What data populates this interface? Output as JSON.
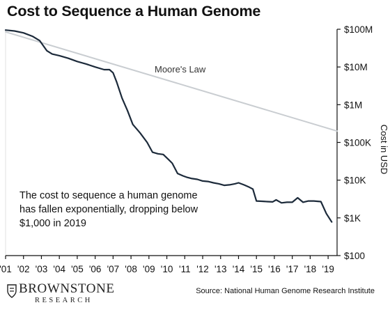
{
  "title": "Cost to Sequence a Human Genome",
  "source": "Source: National Human Genome Research Institute",
  "logo": {
    "name": "BROWNSTONE",
    "sub": "RESEARCH",
    "icon": "shield-crest-icon"
  },
  "annotation": [
    "The cost to sequence a human genome",
    "has fallen exponentially, dropping below",
    "$1,000 in 2019"
  ],
  "chart_data": {
    "type": "line",
    "title": "Cost to Sequence a Human Genome",
    "xlabel": "",
    "ylabel": "Cost in USD",
    "yscale": "log",
    "ylim": [
      100,
      100000000
    ],
    "xlim": [
      2001,
      2019.5
    ],
    "x_ticks": [
      2001,
      2002,
      2003,
      2004,
      2005,
      2006,
      2007,
      2008,
      2009,
      2010,
      2011,
      2012,
      2013,
      2014,
      2015,
      2016,
      2017,
      2018,
      2019
    ],
    "x_tick_labels": [
      "'01",
      "'02",
      "'03",
      "'04",
      "'05",
      "'06",
      "'07",
      "'08",
      "'09",
      "'10",
      "'11",
      "'12",
      "'13",
      "'14",
      "'15",
      "'16",
      "'17",
      "'18",
      "'19"
    ],
    "y_ticks": [
      100,
      1000,
      10000,
      100000,
      1000000,
      10000000,
      100000000
    ],
    "y_tick_labels": [
      "$100",
      "$1K",
      "$10K",
      "$100K",
      "$1M",
      "$10M",
      "$100M"
    ],
    "grid": false,
    "legend": "none",
    "series": [
      {
        "name": "",
        "color": "#1c2a3a",
        "points": [
          [
            2001.0,
            95000000
          ],
          [
            2001.5,
            90000000
          ],
          [
            2002.0,
            80000000
          ],
          [
            2002.5,
            65000000
          ],
          [
            2002.9,
            50000000
          ],
          [
            2003.3,
            27000000
          ],
          [
            2003.6,
            22000000
          ],
          [
            2004.0,
            20000000
          ],
          [
            2004.5,
            17000000
          ],
          [
            2005.0,
            14000000
          ],
          [
            2005.5,
            12000000
          ],
          [
            2006.0,
            10000000
          ],
          [
            2006.5,
            8500000
          ],
          [
            2006.8,
            8500000
          ],
          [
            2007.0,
            7000000
          ],
          [
            2007.2,
            4000000
          ],
          [
            2007.5,
            1500000
          ],
          [
            2007.8,
            700000
          ],
          [
            2008.1,
            300000
          ],
          [
            2008.5,
            180000
          ],
          [
            2008.9,
            100000
          ],
          [
            2009.2,
            55000
          ],
          [
            2009.5,
            50000
          ],
          [
            2009.8,
            48000
          ],
          [
            2010.1,
            35000
          ],
          [
            2010.3,
            28000
          ],
          [
            2010.6,
            15000
          ],
          [
            2010.9,
            13000
          ],
          [
            2011.1,
            12000
          ],
          [
            2011.4,
            11000
          ],
          [
            2011.7,
            10500
          ],
          [
            2012.0,
            9500
          ],
          [
            2012.3,
            9200
          ],
          [
            2012.6,
            8500
          ],
          [
            2012.9,
            8000
          ],
          [
            2013.2,
            7300
          ],
          [
            2013.5,
            7500
          ],
          [
            2013.8,
            8000
          ],
          [
            2014.0,
            8500
          ],
          [
            2014.3,
            7500
          ],
          [
            2014.6,
            6500
          ],
          [
            2014.8,
            5800
          ],
          [
            2015.0,
            2800
          ],
          [
            2015.3,
            2750
          ],
          [
            2015.6,
            2700
          ],
          [
            2015.9,
            2650
          ],
          [
            2016.1,
            3000
          ],
          [
            2016.4,
            2500
          ],
          [
            2016.7,
            2600
          ],
          [
            2017.0,
            2600
          ],
          [
            2017.3,
            3400
          ],
          [
            2017.6,
            2600
          ],
          [
            2017.9,
            2800
          ],
          [
            2018.2,
            2800
          ],
          [
            2018.6,
            2700
          ],
          [
            2018.9,
            1300
          ],
          [
            2019.2,
            780
          ]
        ]
      },
      {
        "name": "Moore's Law",
        "color": "#c9cdd1",
        "points": [
          [
            2001.0,
            85000000
          ],
          [
            2019.5,
            200000
          ]
        ]
      }
    ]
  }
}
